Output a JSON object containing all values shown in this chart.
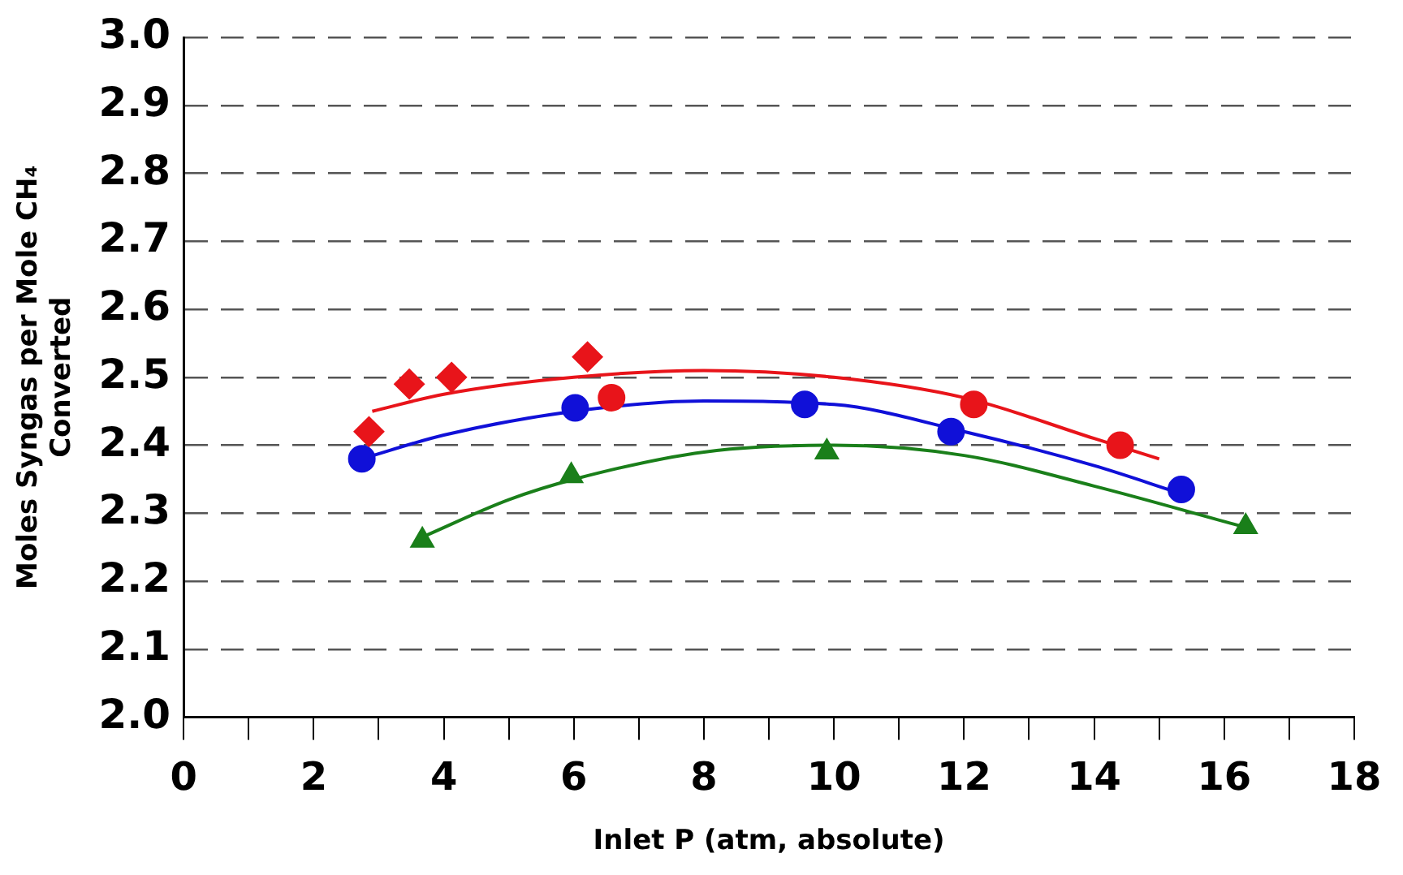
{
  "chart_data": {
    "type": "scatter",
    "xlabel": "Inlet P (atm, absolute)",
    "ylabel": "Moles Syngas per Mole CH₄ Converted",
    "xlim": [
      0,
      18
    ],
    "xticks": [
      0,
      {
        "value": 1,
        "label": null
      },
      2,
      {
        "value": 3,
        "label": null
      },
      4,
      {
        "value": 5,
        "label": null
      },
      6,
      {
        "value": 7,
        "label": null
      },
      8,
      {
        "value": 9,
        "label": null
      },
      10,
      {
        "value": 11,
        "label": null
      },
      12,
      {
        "value": 13,
        "label": null
      },
      14,
      {
        "value": 15,
        "label": null
      },
      16,
      {
        "value": 17,
        "label": null
      },
      18
    ],
    "ylim": [
      2.0,
      3.0
    ],
    "yticks": [
      {
        "value": 2.0,
        "label": "2.0"
      },
      {
        "value": 2.1,
        "label": "2.1"
      },
      {
        "value": 2.2,
        "label": "2.2"
      },
      {
        "value": 2.3,
        "label": "2.3"
      },
      {
        "value": 2.4,
        "label": "2.4"
      },
      {
        "value": 2.5,
        "label": "2.5"
      },
      {
        "value": 2.6,
        "label": "2.6"
      },
      {
        "value": 2.7,
        "label": "2.7"
      },
      {
        "value": 2.8,
        "label": "2.8"
      },
      {
        "value": 2.9,
        "label": "2.9"
      },
      {
        "value": 3.0,
        "label": "3.0"
      }
    ],
    "grid": "y",
    "legend": false,
    "series": [
      {
        "type": "line",
        "color": "#e8141a",
        "marker": "none",
        "x": [
          2.9,
          4,
          6,
          8,
          10,
          12,
          14,
          15
        ],
        "values": [
          2.45,
          2.475,
          2.5,
          2.51,
          2.5,
          2.47,
          2.41,
          2.38
        ]
      },
      {
        "type": "line",
        "color": "#1010d8",
        "marker": "none",
        "x": [
          2.74,
          4,
          6,
          8,
          10,
          12,
          14,
          15.3
        ],
        "values": [
          2.38,
          2.415,
          2.45,
          2.465,
          2.46,
          2.42,
          2.37,
          2.33
        ]
      },
      {
        "type": "line",
        "color": "#1a7f1a",
        "marker": "none",
        "x": [
          3.67,
          5,
          6,
          8,
          10,
          12,
          14,
          16.3
        ],
        "values": [
          2.265,
          2.32,
          2.35,
          2.39,
          2.4,
          2.385,
          2.34,
          2.28
        ]
      },
      {
        "type": "scatter",
        "color": "#e8141a",
        "marker": "diamond",
        "x": [
          2.85,
          3.47,
          4.12,
          6.21
        ],
        "values": [
          2.42,
          2.49,
          2.5,
          2.53
        ]
      },
      {
        "type": "scatter",
        "color": "#e8141a",
        "marker": "circle",
        "x": [
          6.58,
          12.15,
          14.4
        ],
        "values": [
          2.47,
          2.46,
          2.4
        ]
      },
      {
        "type": "scatter",
        "color": "#1010d8",
        "marker": "circle",
        "x": [
          2.74,
          6.02,
          9.55,
          11.8,
          15.34
        ],
        "values": [
          2.38,
          2.455,
          2.46,
          2.42,
          2.335
        ]
      },
      {
        "type": "scatter",
        "color": "#1a7f1a",
        "marker": "triangle",
        "x": [
          3.67,
          5.96,
          9.89,
          16.33
        ],
        "values": [
          2.26,
          2.355,
          2.39,
          2.28
        ]
      }
    ]
  }
}
